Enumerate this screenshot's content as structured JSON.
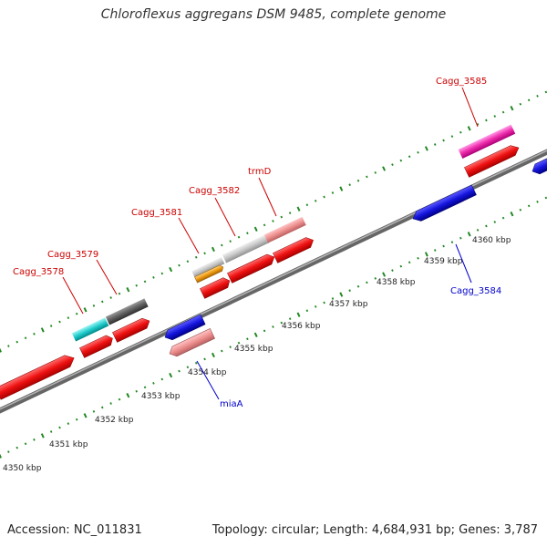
{
  "title": "Chloroflexus aggregans DSM 9485, complete genome",
  "footer": {
    "accession": "Accession: NC_011831",
    "topology": "Topology: circular; Length: 4,684,931 bp; Genes: 3,787"
  },
  "colors": {
    "forward_cds": "#ee1111",
    "reverse_cds": "#1111dd",
    "forward_label": "#cc0000",
    "reverse_label": "#0000cc",
    "tick": "#228822",
    "backbone": "#888888"
  },
  "kbp_labels": [
    "4350 kbp",
    "4351 kbp",
    "4352 kbp",
    "4353 kbp",
    "4354 kbp",
    "4355 kbp",
    "4356 kbp",
    "4357 kbp",
    "4358 kbp",
    "4359 kbp",
    "4360 kbp"
  ],
  "gene_labels": {
    "cagg_3578": "Cagg_3578",
    "cagg_3579": "Cagg_3579",
    "cagg_3581": "Cagg_3581",
    "cagg_3582": "Cagg_3582",
    "trmD": "trmD",
    "cagg_3585": "Cagg_3585",
    "cagg_3584": "Cagg_3584",
    "miaA": "miaA"
  }
}
